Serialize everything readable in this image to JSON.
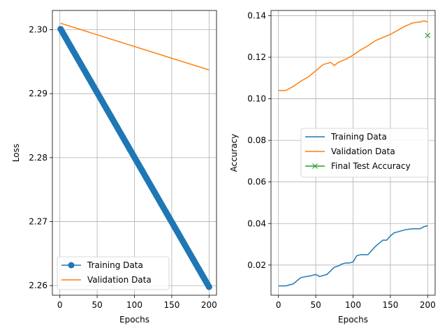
{
  "chart_data": [
    {
      "type": "line",
      "xlabel": "Epochs",
      "ylabel": "Loss",
      "xlim": [
        -10,
        210
      ],
      "ylim": [
        2.2585,
        2.303
      ],
      "xticks": [
        0,
        50,
        100,
        150,
        200
      ],
      "yticks": [
        2.26,
        2.27,
        2.28,
        2.29,
        2.3
      ],
      "ytick_labels": [
        "2.26",
        "2.27",
        "2.28",
        "2.29",
        "2.30"
      ],
      "grid": true,
      "legend_position": "lower-left",
      "series": [
        {
          "name": "Training Data",
          "color": "#1f77b4",
          "marker": "circle",
          "x": [
            1,
            200
          ],
          "y": [
            2.3001,
            2.2598
          ]
        },
        {
          "name": "Validation Data",
          "color": "#ff7f0e",
          "marker": "none",
          "x": [
            1,
            200
          ],
          "y": [
            2.301,
            2.2937
          ]
        }
      ]
    },
    {
      "type": "line",
      "xlabel": "Epochs",
      "ylabel": "Accuracy",
      "xlim": [
        -10,
        210
      ],
      "ylim": [
        0.0055,
        0.1425
      ],
      "xticks": [
        0,
        50,
        100,
        150,
        200
      ],
      "yticks": [
        0.02,
        0.04,
        0.06,
        0.08,
        0.1,
        0.12,
        0.14
      ],
      "ytick_labels": [
        "0.02",
        "0.04",
        "0.06",
        "0.08",
        "0.10",
        "0.12",
        "0.14"
      ],
      "grid": true,
      "legend_position": "center-right",
      "series": [
        {
          "name": "Training Data",
          "color": "#1f77b4",
          "marker": "none",
          "x": [
            0,
            10,
            20,
            25,
            30,
            45,
            50,
            55,
            65,
            75,
            80,
            85,
            90,
            95,
            100,
            105,
            110,
            120,
            130,
            135,
            140,
            145,
            150,
            155,
            160,
            170,
            180,
            185,
            190,
            195,
            200
          ],
          "y": [
            0.01,
            0.01,
            0.011,
            0.0125,
            0.014,
            0.015,
            0.0155,
            0.0145,
            0.0155,
            0.019,
            0.0195,
            0.0205,
            0.021,
            0.021,
            0.0215,
            0.0245,
            0.025,
            0.025,
            0.029,
            0.0305,
            0.032,
            0.032,
            0.034,
            0.0355,
            0.036,
            0.037,
            0.0375,
            0.0375,
            0.0375,
            0.0385,
            0.039
          ]
        },
        {
          "name": "Validation Data",
          "color": "#ff7f0e",
          "marker": "none",
          "x": [
            0,
            10,
            20,
            30,
            40,
            50,
            60,
            70,
            75,
            80,
            90,
            100,
            110,
            120,
            130,
            140,
            150,
            160,
            170,
            180,
            190,
            195,
            200
          ],
          "y": [
            0.104,
            0.104,
            0.106,
            0.1085,
            0.1105,
            0.1135,
            0.1165,
            0.1175,
            0.116,
            0.1175,
            0.119,
            0.121,
            0.1235,
            0.1255,
            0.128,
            0.1295,
            0.131,
            0.133,
            0.135,
            0.1365,
            0.137,
            0.1375,
            0.137
          ]
        },
        {
          "name": "Final Test Accuracy",
          "color": "#2ca02c",
          "marker": "x",
          "x": [
            200
          ],
          "y": [
            0.1305
          ]
        }
      ]
    }
  ]
}
